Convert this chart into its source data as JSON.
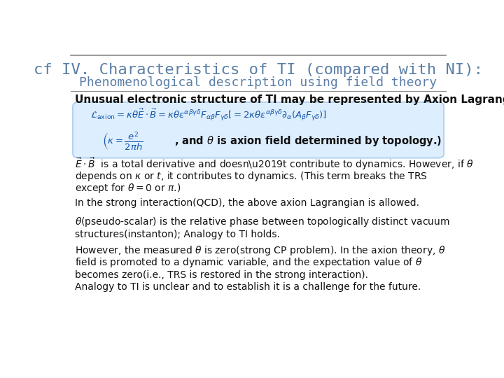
{
  "title_line1": "cf IV. Characteristics of TI (compared with NI):",
  "title_line2": "Phenomenological description using field theory",
  "title_color": "#5b7fa6",
  "title_line1_size": 16,
  "title_line2_size": 13,
  "separator_color": "#888888",
  "background_color": "#ffffff",
  "box_color": "#ddeeff",
  "box_edge_color": "#aaccee",
  "body_text_color": "#111111",
  "body_font_size": 10.5,
  "unusual_text": "Unusual electronic structure of TI may be represented by Axion Lagrangian."
}
